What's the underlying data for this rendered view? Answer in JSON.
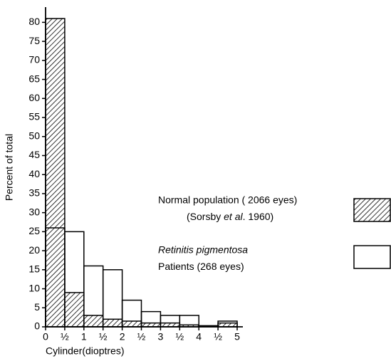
{
  "chart_data": {
    "type": "histogram",
    "xlabel": "Cylinder(dioptres)",
    "ylabel": "Percent of total",
    "bins": [
      0,
      0.5,
      1,
      1.5,
      2,
      2.5,
      3,
      3.5,
      4,
      4.5,
      5
    ],
    "series": [
      {
        "name": "Normal population ( 2066 eyes)",
        "note": [
          "(Sorsby ",
          "et al",
          ". 1960)"
        ],
        "color": "#000000",
        "fill": "hatch",
        "values": [
          81,
          9,
          3,
          2,
          1.5,
          1,
          1,
          0.5,
          0.3,
          1
        ]
      },
      {
        "name": "Retinitis pigmentosa",
        "note": [
          "Patients (268 eyes)"
        ],
        "color": "#000000",
        "fill": "none",
        "values": [
          26,
          25,
          16,
          15,
          7,
          4,
          3,
          3,
          0,
          1.5
        ]
      }
    ],
    "xlim": [
      0,
      5
    ],
    "xticks": [
      0,
      {
        "value": 0.5,
        "label": "½"
      },
      1,
      {
        "value": 1.5,
        "label": "½"
      },
      2,
      {
        "value": 2.5,
        "label": "½"
      },
      3,
      {
        "value": 3.5,
        "label": "½"
      },
      4,
      {
        "value": 4.5,
        "label": "½"
      },
      5
    ],
    "ylim": [
      0,
      84
    ],
    "yticks": [
      0,
      5,
      10,
      15,
      20,
      25,
      30,
      35,
      40,
      45,
      50,
      55,
      60,
      65,
      70,
      75,
      80
    ],
    "grid": false
  }
}
